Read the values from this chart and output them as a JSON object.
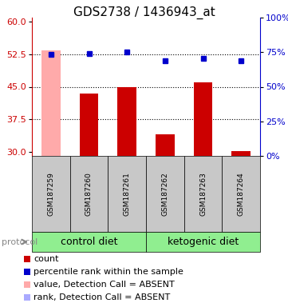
{
  "title": "GDS2738 / 1436943_at",
  "samples": [
    "GSM187259",
    "GSM187260",
    "GSM187261",
    "GSM187262",
    "GSM187263",
    "GSM187264"
  ],
  "bar_values": [
    null,
    43.5,
    45.0,
    34.0,
    46.0,
    30.2
  ],
  "bar_absent_values": [
    53.5,
    null,
    null,
    null,
    null,
    null
  ],
  "bar_color": "#cc0000",
  "bar_absent_color": "#ffaaaa",
  "bar_width": 0.5,
  "rank_values": [
    52.4,
    52.6,
    53.0,
    51.0,
    51.5,
    51.1
  ],
  "rank_color": "#0000cc",
  "rank_absent_color": "#aaaaff",
  "rank_marker": "s",
  "rank_marker_size": 4,
  "ylim_left": [
    29,
    61
  ],
  "ylim_right": [
    0,
    100
  ],
  "yticks_left": [
    30,
    37.5,
    45,
    52.5,
    60
  ],
  "yticks_right": [
    0,
    25,
    50,
    75,
    100
  ],
  "ytick_labels_right": [
    "0%",
    "25%",
    "50%",
    "75%",
    "100%"
  ],
  "hlines": [
    37.5,
    45.0,
    52.5
  ],
  "hline_color": "black",
  "group1_label": "control diet",
  "group2_label": "ketogenic diet",
  "group1_indices": [
    0,
    1,
    2
  ],
  "group2_indices": [
    3,
    4,
    5
  ],
  "group_color": "#90ee90",
  "protocol_label": "protocol",
  "legend_items": [
    {
      "label": "count",
      "color": "#cc0000"
    },
    {
      "label": "percentile rank within the sample",
      "color": "#0000cc"
    },
    {
      "label": "value, Detection Call = ABSENT",
      "color": "#ffaaaa"
    },
    {
      "label": "rank, Detection Call = ABSENT",
      "color": "#aaaaff"
    }
  ],
  "label_area_bg": "#c8c8c8",
  "title_fontsize": 11,
  "tick_fontsize": 8,
  "legend_fontsize": 8,
  "group_label_fontsize": 9,
  "sample_fontsize": 6.5
}
